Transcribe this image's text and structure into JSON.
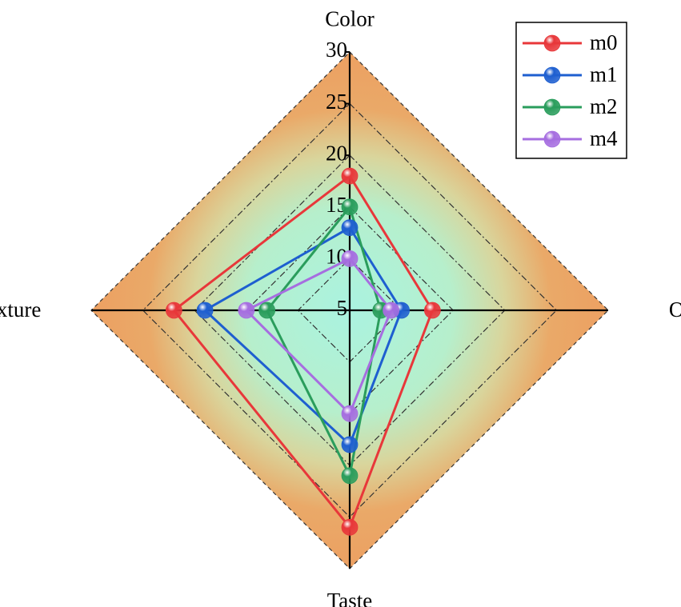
{
  "chart_data": {
    "type": "radar",
    "categories": [
      "Color",
      "Odor",
      "Taste",
      "Texture"
    ],
    "rlim": [
      5,
      30
    ],
    "rticks": [
      5,
      10,
      15,
      20,
      25,
      30
    ],
    "grid": true,
    "legend": "top-right",
    "series": [
      {
        "name": "m0",
        "color": "#e8373a",
        "values": [
          18,
          13,
          26,
          22
        ]
      },
      {
        "name": "m1",
        "color": "#1e5fd0",
        "values": [
          13,
          10,
          18,
          19
        ]
      },
      {
        "name": "m2",
        "color": "#2a9d5c",
        "values": [
          15,
          8,
          21,
          13
        ]
      },
      {
        "name": "m4",
        "color": "#a66ee0",
        "values": [
          10,
          9,
          15,
          15
        ]
      }
    ]
  }
}
